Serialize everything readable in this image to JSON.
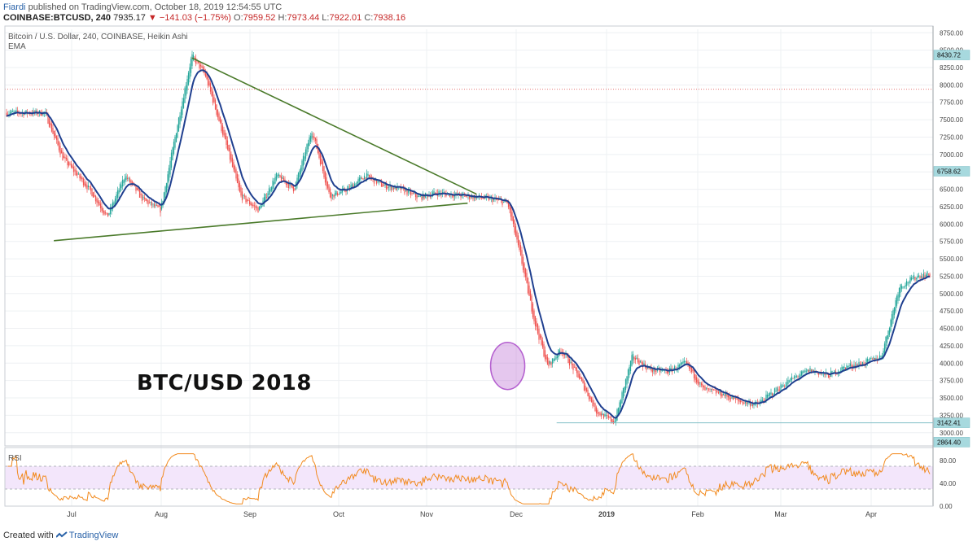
{
  "header": {
    "user": "Fiardi",
    "published": "published on TradingView.com, October 18, 2019 12:54:55 UTC",
    "symbol": "COINBASE:BTCUSD, 240",
    "last": "7935.17",
    "down_arrow": "▼",
    "change": "−141.03 (−1.75%)",
    "o_label": "O:",
    "o": "7959.52",
    "h_label": "H:",
    "h": "7973.44",
    "l_label": "L:",
    "l": "7922.01",
    "c_label": "C:",
    "c": "7938.16"
  },
  "legend": {
    "line1": "Bitcoin / U.S. Dollar, 240, COINBASE, Heikin Ashi",
    "line2": "EMA"
  },
  "rsi_label": "RSI",
  "big_title": "BTC/USD 2018",
  "footer": {
    "created": "Created with",
    "brand": "TradingView"
  },
  "colors": {
    "candle_up": "#26a69a",
    "candle_down": "#ef5350",
    "ema": "#1f3f8f",
    "trendline": "#4a7a2a",
    "rsi_line": "#f28a1e",
    "rsi_band": "#f3e6fb",
    "highlight_circle": "#b45fcf",
    "price_label_bg": "#a7d9de",
    "ref_line": "#e57373"
  },
  "chart_data": {
    "type": "candlestick",
    "title": "BTC/USD 2018",
    "series_name": "Bitcoin / U.S. Dollar, 240, COINBASE, Heikin Ashi",
    "x_ticks": [
      "Jul",
      "Aug",
      "Sep",
      "Oct",
      "Nov",
      "Dec",
      "2019",
      "Feb",
      "Mar",
      "Apr"
    ],
    "y_ticks": [
      3000,
      3250,
      3500,
      3750,
      4000,
      4250,
      4500,
      4750,
      5000,
      5250,
      5500,
      5750,
      6000,
      6250,
      6500,
      6750,
      7000,
      7250,
      7500,
      7750,
      8000,
      8250,
      8500,
      8750
    ],
    "y_tick_labels": [
      "3000.00",
      "3250.00",
      "3500.00",
      "3750.00",
      "4000.00",
      "4250.00",
      "4500.00",
      "4750.00",
      "5000.00",
      "5250.00",
      "5500.00",
      "5750.00",
      "6000.00",
      "6250.00",
      "6500.00",
      "6750.00",
      "7000.00",
      "7250.00",
      "7500.00",
      "7750.00",
      "8000.00",
      "8250.00",
      "8500.00",
      "8750.00"
    ],
    "ylim": [
      2810,
      8800
    ],
    "price_labels": [
      "8430.72",
      "6758.62",
      "3142.41",
      "2864.40"
    ],
    "price_label_values": [
      8430.72,
      6758.62,
      3142.41,
      2864.4
    ],
    "reference_level": 7938.16,
    "close_path_month_index": [
      -0.3,
      -0.1,
      0.2,
      0.4,
      0.6,
      0.8,
      1.0,
      1.2,
      1.35,
      1.5,
      1.7,
      1.9,
      2.1,
      2.3,
      2.5,
      2.7,
      2.9,
      3.1,
      3.3,
      3.5,
      3.7,
      3.9,
      4.1,
      4.3,
      4.45,
      4.6,
      4.75,
      4.9,
      5.05,
      5.2,
      5.35,
      5.5,
      5.7,
      5.9,
      6.1,
      6.3,
      6.5,
      6.7,
      6.9,
      7.1,
      7.3,
      7.5,
      7.7,
      7.9,
      8.1,
      8.3,
      8.5,
      8.7,
      8.9,
      9.1,
      9.3,
      9.5,
      9.65
    ],
    "close_path_price": [
      7600,
      6950,
      6500,
      6100,
      6700,
      6350,
      6200,
      7500,
      8420,
      8150,
      7300,
      6400,
      6200,
      6700,
      6500,
      7350,
      6400,
      6500,
      6700,
      6550,
      6500,
      6380,
      6450,
      6420,
      6400,
      6380,
      6350,
      6300,
      5500,
      4600,
      3950,
      4200,
      3800,
      3300,
      3150,
      4100,
      3900,
      3880,
      4000,
      3620,
      3560,
      3450,
      3400,
      3600,
      3780,
      3900,
      3820,
      3950,
      4000,
      4100,
      5100,
      5250,
      5280
    ],
    "trendlines": [
      {
        "from": [
          1.35,
          8390
        ],
        "to": [
          4.55,
          6430
        ]
      },
      {
        "from": [
          -0.2,
          5760
        ],
        "to": [
          4.45,
          6300
        ]
      }
    ],
    "rsi": {
      "y_ticks": [
        0,
        40,
        80
      ],
      "y_tick_labels": [
        "0.00",
        "40.00",
        "80.00"
      ],
      "band": [
        30,
        70
      ],
      "ylim": [
        0,
        100
      ]
    }
  }
}
